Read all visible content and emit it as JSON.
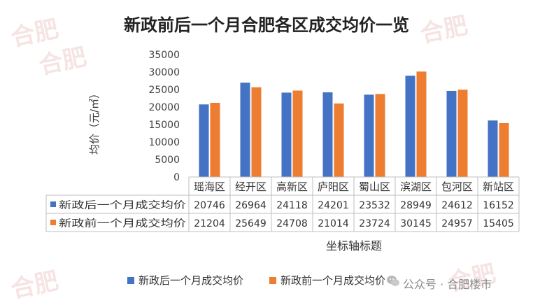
{
  "chart_data": {
    "type": "bar",
    "title": "新政前后一个月合肥各区成交均价一览",
    "ylabel": "均价（元/㎡）",
    "xlabel": "坐标轴标题",
    "ylim": [
      0,
      35000
    ],
    "yticks": [
      "0",
      "5000",
      "10000",
      "15000",
      "20000",
      "25000",
      "30000",
      "35000"
    ],
    "categories": [
      "瑶海区",
      "经开区",
      "高新区",
      "庐阳区",
      "蜀山区",
      "滨湖区",
      "包河区",
      "新站区"
    ],
    "series": [
      {
        "name": "新政后一个月成交均价",
        "color": "#4472C4",
        "values": [
          20746,
          26964,
          24118,
          24201,
          23532,
          28949,
          24612,
          16152
        ]
      },
      {
        "name": "新政前一个月成交均价",
        "color": "#ED7D31",
        "values": [
          21204,
          25649,
          24708,
          21014,
          23724,
          30145,
          24957,
          15405
        ]
      }
    ],
    "grid": false,
    "legend": "bottom",
    "data_table": true
  },
  "watermark": {
    "text": "合肥",
    "credit": "公众号 · 合肥楼市",
    "icon": "wechat-icon"
  }
}
